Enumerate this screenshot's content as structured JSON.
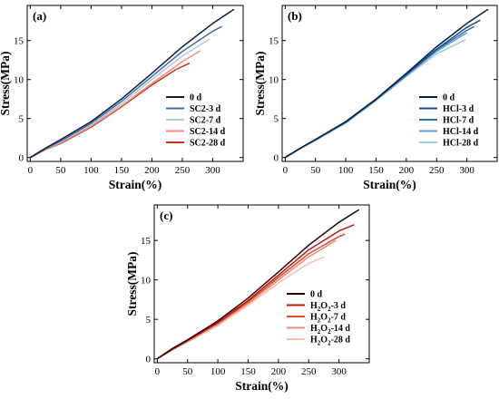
{
  "chart_data": [
    {
      "type": "line",
      "panel_label": "(a)",
      "xlabel": "Strain(%)",
      "ylabel": "Stress(MPa)",
      "xlim": [
        -5,
        350
      ],
      "ylim": [
        -0.5,
        19.5
      ],
      "xticks": [
        0,
        50,
        100,
        150,
        200,
        250,
        300
      ],
      "yticks": [
        0,
        5,
        10,
        15
      ],
      "legend_position": "center-right",
      "series": [
        {
          "name": "0 d",
          "color": "#0a1e3c",
          "x": [
            0,
            25,
            50,
            100,
            150,
            200,
            250,
            300,
            335
          ],
          "y": [
            0,
            1.2,
            2.3,
            4.6,
            7.5,
            10.8,
            14.2,
            17.2,
            19.0
          ]
        },
        {
          "name": "SC2-3 d",
          "color": "#3d6ea3",
          "x": [
            0,
            25,
            50,
            100,
            150,
            200,
            250,
            300,
            315
          ],
          "y": [
            0,
            1.1,
            2.1,
            4.4,
            7.2,
            10.4,
            13.6,
            16.2,
            16.8
          ]
        },
        {
          "name": "SC2-7 d",
          "color": "#a9c8e6",
          "x": [
            0,
            25,
            50,
            100,
            150,
            200,
            250,
            295
          ],
          "y": [
            0,
            1.1,
            2.0,
            4.2,
            6.9,
            10.0,
            13.0,
            15.2
          ]
        },
        {
          "name": "SC2-14 d",
          "color": "#ee8f78",
          "x": [
            0,
            25,
            50,
            100,
            150,
            200,
            250,
            280
          ],
          "y": [
            0,
            1.0,
            1.9,
            4.0,
            6.6,
            9.5,
            12.3,
            13.7
          ]
        },
        {
          "name": "SC2-28 d",
          "color": "#d42a16",
          "x": [
            0,
            25,
            50,
            100,
            150,
            200,
            240,
            262
          ],
          "y": [
            0,
            1.0,
            1.8,
            3.9,
            6.5,
            9.3,
            11.3,
            12.1
          ]
        }
      ]
    },
    {
      "type": "line",
      "panel_label": "(b)",
      "xlabel": "Strain(%)",
      "ylabel": "Stress(MPa)",
      "xlim": [
        -5,
        350
      ],
      "ylim": [
        -0.5,
        19.5
      ],
      "xticks": [
        0,
        50,
        100,
        150,
        200,
        250,
        300
      ],
      "yticks": [
        0,
        5,
        10,
        15
      ],
      "legend_position": "center-right",
      "series": [
        {
          "name": "0 d",
          "color": "#0a1e3c",
          "x": [
            0,
            25,
            50,
            100,
            150,
            200,
            250,
            300,
            335
          ],
          "y": [
            0,
            1.2,
            2.3,
            4.6,
            7.5,
            10.8,
            14.2,
            17.2,
            19.0
          ]
        },
        {
          "name": "HCl-3 d",
          "color": "#1f4e88",
          "x": [
            0,
            25,
            50,
            100,
            150,
            200,
            250,
            300,
            322
          ],
          "y": [
            0,
            1.2,
            2.3,
            4.6,
            7.5,
            10.7,
            13.9,
            16.7,
            17.6
          ]
        },
        {
          "name": "HCl-7 d",
          "color": "#2f6fb0",
          "x": [
            0,
            25,
            50,
            100,
            150,
            200,
            250,
            300,
            312
          ],
          "y": [
            0,
            1.2,
            2.3,
            4.5,
            7.4,
            10.6,
            13.8,
            16.3,
            16.8
          ]
        },
        {
          "name": "HCl-14 d",
          "color": "#5c9fd6",
          "x": [
            0,
            25,
            50,
            100,
            150,
            200,
            250,
            300
          ],
          "y": [
            0,
            1.2,
            2.2,
            4.5,
            7.4,
            10.5,
            13.6,
            16.0
          ]
        },
        {
          "name": "HCl-28 d",
          "color": "#9cc8ec",
          "x": [
            0,
            25,
            50,
            100,
            150,
            200,
            250,
            298
          ],
          "y": [
            0,
            1.1,
            2.2,
            4.4,
            7.3,
            10.4,
            13.3,
            15.1
          ]
        }
      ]
    },
    {
      "type": "line",
      "panel_label": "(c)",
      "xlabel": "Strain(%)",
      "ylabel": "Stress(MPa)",
      "xlim": [
        -5,
        350
      ],
      "ylim": [
        -0.5,
        19.5
      ],
      "xticks": [
        0,
        50,
        100,
        150,
        200,
        250,
        300
      ],
      "yticks": [
        0,
        5,
        10,
        15
      ],
      "legend_position": "lower-right",
      "series": [
        {
          "name": "0 d",
          "color": "#2a0505",
          "x": [
            0,
            25,
            50,
            100,
            150,
            200,
            250,
            300,
            333
          ],
          "y": [
            0,
            1.3,
            2.4,
            4.8,
            7.7,
            11.0,
            14.4,
            17.3,
            18.9
          ]
        },
        {
          "name": "H2O2-3 d",
          "name_base": "H",
          "name_sub1": "2",
          "name_mid": "O",
          "name_sub2": "2",
          "name_tail": "-3 d",
          "color": "#b31616",
          "x": [
            0,
            25,
            50,
            100,
            150,
            200,
            250,
            300,
            325
          ],
          "y": [
            0,
            1.2,
            2.3,
            4.6,
            7.4,
            10.6,
            13.8,
            16.2,
            17.0
          ]
        },
        {
          "name": "H2O2-7 d",
          "name_base": "H",
          "name_sub1": "2",
          "name_mid": "O",
          "name_sub2": "2",
          "name_tail": "-7 d",
          "color": "#de4a2e",
          "x": [
            0,
            25,
            50,
            100,
            150,
            200,
            250,
            300,
            310
          ],
          "y": [
            0,
            1.2,
            2.3,
            4.5,
            7.2,
            10.3,
            13.3,
            15.5,
            15.8
          ]
        },
        {
          "name": "H2O2-14 d",
          "name_base": "H",
          "name_sub1": "2",
          "name_mid": "O",
          "name_sub2": "2",
          "name_tail": "-14 d",
          "color": "#f08c6c",
          "x": [
            0,
            25,
            50,
            100,
            150,
            200,
            250,
            295
          ],
          "y": [
            0,
            1.2,
            2.2,
            4.4,
            7.0,
            10.0,
            12.9,
            15.0
          ]
        },
        {
          "name": "H2O2-28 d",
          "name_base": "H",
          "name_sub1": "2",
          "name_mid": "O",
          "name_sub2": "2",
          "name_tail": "-28 d",
          "color": "#f7bfa8",
          "x": [
            0,
            25,
            50,
            100,
            150,
            200,
            250,
            275
          ],
          "y": [
            0,
            1.1,
            2.1,
            4.2,
            6.8,
            9.6,
            12.1,
            12.9
          ]
        }
      ]
    }
  ]
}
